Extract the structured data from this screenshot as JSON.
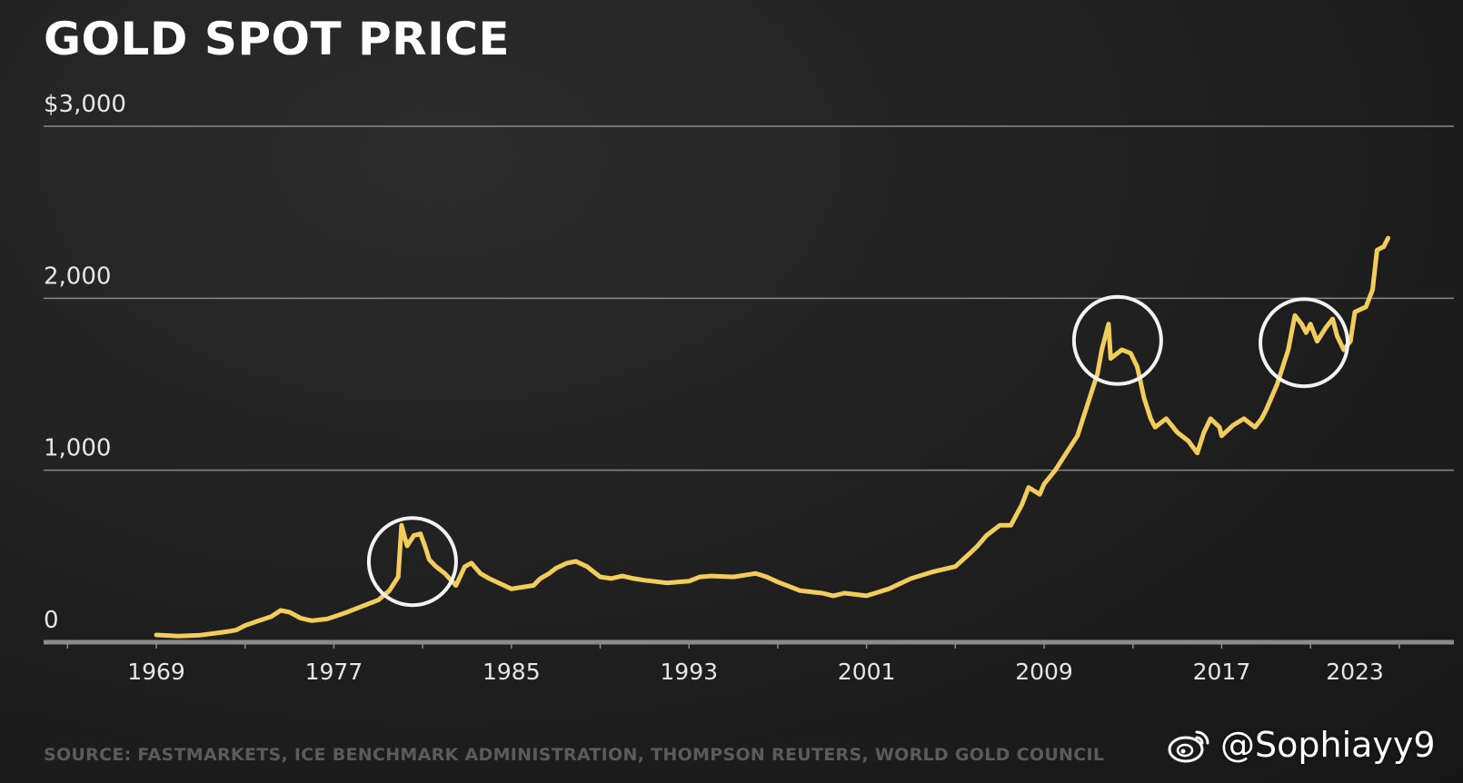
{
  "chart_data": {
    "type": "line",
    "title": "GOLD SPOT PRICE",
    "y_tick_labels": [
      "0",
      "1,000",
      "2,000",
      "$3,000"
    ],
    "y_ticks": [
      0,
      1000,
      2000,
      3000
    ],
    "ylim": [
      0,
      3000
    ],
    "x_tick_labels": [
      "1969",
      "1977",
      "1985",
      "1993",
      "2001",
      "2009",
      "2017",
      "2023"
    ],
    "x_ticks": [
      1969,
      1977,
      1985,
      1993,
      2001,
      2009,
      2017,
      2023
    ],
    "xlim": [
      1964,
      2030
    ],
    "grid": true,
    "line_color": "#f2cd5c",
    "series": [
      {
        "x": [
          1969.0,
          1970.0,
          1971.0,
          1972.0,
          1972.6,
          1973.0,
          1973.5,
          1974.2,
          1974.6,
          1975.0,
          1975.5,
          1976.0,
          1976.7,
          1977.0,
          1977.5,
          1978.0,
          1978.5,
          1979.0,
          1979.5,
          1979.9,
          1980.05,
          1980.3,
          1980.6,
          1980.9,
          1981.1,
          1981.3,
          1981.6,
          1982.0,
          1982.5,
          1982.9,
          1983.2,
          1983.6,
          1984.0,
          1984.5,
          1985.0,
          1985.5,
          1986.0,
          1986.3,
          1986.7,
          1987.0,
          1987.5,
          1987.9,
          1988.4,
          1989.0,
          1989.5,
          1990.0,
          1990.5,
          1991.0,
          1992.0,
          1993.0,
          1993.5,
          1994.0,
          1995.0,
          1996.0,
          1996.5,
          1997.0,
          1998.0,
          1999.0,
          1999.5,
          2000.0,
          2001.0,
          2002.0,
          2003.0,
          2004.0,
          2005.0,
          2005.6,
          2006.0,
          2006.4,
          2007.0,
          2007.5,
          2008.0,
          2008.3,
          2008.8,
          2009.0,
          2009.5,
          2010.0,
          2010.5,
          2011.0,
          2011.4,
          2011.6,
          2011.9,
          2012.0,
          2012.5,
          2012.9,
          2013.2,
          2013.5,
          2013.8,
          2014.0,
          2014.5,
          2015.0,
          2015.5,
          2015.9,
          2016.2,
          2016.5,
          2016.9,
          2017.0,
          2017.5,
          2018.0,
          2018.5,
          2018.8,
          2019.0,
          2019.5,
          2020.0,
          2020.3,
          2020.6,
          2020.8,
          2021.0,
          2021.3,
          2021.7,
          2022.0,
          2022.2,
          2022.5,
          2022.8,
          2023.0,
          2023.5,
          2023.8,
          2024.0,
          2024.3,
          2024.5
        ],
        "values": [
          42,
          36,
          41,
          58,
          70,
          97,
          120,
          150,
          185,
          175,
          140,
          125,
          135,
          148,
          170,
          195,
          220,
          245,
          300,
          380,
          680,
          560,
          620,
          630,
          560,
          480,
          440,
          400,
          330,
          440,
          460,
          400,
          370,
          340,
          310,
          320,
          330,
          370,
          400,
          430,
          460,
          470,
          440,
          380,
          370,
          385,
          370,
          360,
          345,
          355,
          380,
          385,
          380,
          400,
          380,
          350,
          300,
          285,
          270,
          285,
          270,
          310,
          370,
          410,
          440,
          510,
          560,
          620,
          680,
          680,
          800,
          900,
          860,
          920,
          1000,
          1100,
          1200,
          1400,
          1560,
          1700,
          1850,
          1650,
          1700,
          1680,
          1600,
          1420,
          1300,
          1250,
          1300,
          1220,
          1170,
          1100,
          1220,
          1300,
          1250,
          1200,
          1260,
          1300,
          1250,
          1300,
          1350,
          1500,
          1700,
          1900,
          1850,
          1800,
          1850,
          1750,
          1830,
          1880,
          1780,
          1700,
          1750,
          1920,
          1950,
          2050,
          2280,
          2300,
          2350
        ]
      }
    ]
  },
  "source": "SOURCE: FASTMARKETS, ICE BENCHMARK ADMINISTRATION, THOMPSON REUTERS, WORLD GOLD COUNCIL",
  "watermark": {
    "handle": "@Sophiayy9",
    "icon": "weibo-icon"
  }
}
